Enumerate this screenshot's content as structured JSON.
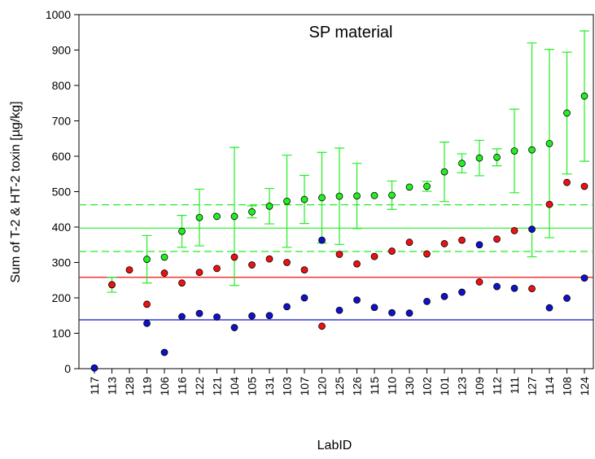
{
  "chart_data": {
    "type": "scatter",
    "title": "SP material",
    "x_label": "LabID",
    "y_label": "Sum of T-2 & HT-2 toxin [µg/kg]",
    "categories": [
      "117",
      "113",
      "128",
      "119",
      "106",
      "116",
      "122",
      "121",
      "104",
      "105",
      "131",
      "103",
      "107",
      "120",
      "125",
      "126",
      "115",
      "110",
      "130",
      "102",
      "101",
      "123",
      "109",
      "112",
      "111",
      "127",
      "114",
      "108",
      "124"
    ],
    "ylim": [
      0,
      1000
    ],
    "yticks": [
      0,
      100,
      200,
      300,
      400,
      500,
      600,
      700,
      800,
      900,
      1000
    ],
    "series": [
      {
        "color": "#22ee22",
        "values": [
          null,
          237,
          null,
          309,
          315,
          388,
          427,
          430,
          430,
          443,
          459,
          473,
          478,
          483,
          487,
          488,
          489,
          490,
          513,
          515,
          556,
          580,
          595,
          597,
          615,
          618,
          636,
          722,
          770
        ],
        "errors": [
          null,
          21,
          null,
          67,
          null,
          45,
          80,
          null,
          195,
          17,
          50,
          130,
          68,
          128,
          136,
          92,
          null,
          40,
          null,
          14,
          84,
          27,
          50,
          24,
          118,
          302,
          266,
          172,
          184
        ]
      },
      {
        "color": "#ee1111",
        "values": [
          null,
          237,
          279,
          182,
          270,
          242,
          272,
          283,
          315,
          293,
          310,
          300,
          279,
          120,
          323,
          296,
          317,
          332,
          357,
          324,
          353,
          363,
          245,
          366,
          390,
          226,
          464,
          526,
          515
        ]
      },
      {
        "color": "#1111cc",
        "values": [
          2,
          null,
          null,
          128,
          46,
          147,
          156,
          146,
          116,
          149,
          150,
          175,
          200,
          363,
          165,
          194,
          173,
          158,
          157,
          190,
          204,
          216,
          350,
          232,
          227,
          394,
          172,
          199,
          256
        ]
      }
    ],
    "hlines": [
      {
        "value": 397,
        "color": "#22ee22",
        "dashed": false
      },
      {
        "value": 463,
        "color": "#22ee22",
        "dashed": true
      },
      {
        "value": 331,
        "color": "#22ee22",
        "dashed": true
      },
      {
        "value": 258,
        "color": "#ee1111",
        "dashed": false
      },
      {
        "value": 138,
        "color": "#1111cc",
        "dashed": false
      }
    ]
  }
}
